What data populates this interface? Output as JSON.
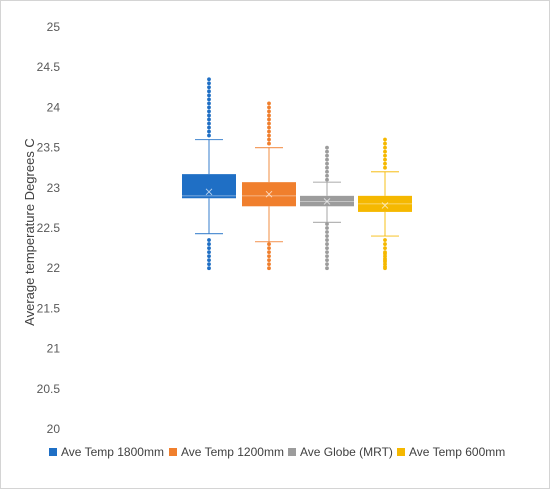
{
  "chart_data": {
    "type": "boxplot",
    "title": "",
    "xlabel": "",
    "ylabel": "Average temperature Degrees C",
    "ylim": [
      20,
      25
    ],
    "yticks": [
      "20",
      "20.5",
      "21",
      "21.5",
      "22",
      "22.5",
      "23",
      "23.5",
      "24",
      "24.5",
      "25"
    ],
    "grid": false,
    "legend_position": "bottom",
    "series": [
      {
        "name": "Ave Temp 1800mm",
        "color": "#1f6fc5",
        "whisker_low": 22.43,
        "q1": 22.87,
        "median": 22.9,
        "mean": 22.95,
        "q3": 23.17,
        "whisker_high": 23.6,
        "outliers": [
          22.0,
          22.05,
          22.1,
          22.15,
          22.2,
          22.25,
          22.3,
          22.35,
          23.65,
          23.7,
          23.75,
          23.8,
          23.85,
          23.9,
          23.95,
          24.0,
          24.05,
          24.1,
          24.15,
          24.2,
          24.25,
          24.3,
          24.35
        ]
      },
      {
        "name": "Ave Temp 1200mm",
        "color": "#f07f2d",
        "whisker_low": 22.33,
        "q1": 22.77,
        "median": 22.9,
        "mean": 22.92,
        "q3": 23.07,
        "whisker_high": 23.5,
        "outliers": [
          22.0,
          22.05,
          22.1,
          22.15,
          22.2,
          22.25,
          22.3,
          23.55,
          23.6,
          23.65,
          23.7,
          23.75,
          23.8,
          23.85,
          23.9,
          23.95,
          24.0,
          24.05
        ]
      },
      {
        "name": "Ave Globe (MRT)",
        "color": "#9c9c9c",
        "whisker_low": 22.57,
        "q1": 22.77,
        "median": 22.83,
        "mean": 22.83,
        "q3": 22.9,
        "whisker_high": 23.07,
        "outliers": [
          22.0,
          22.05,
          22.1,
          22.15,
          22.2,
          22.25,
          22.3,
          22.35,
          22.4,
          22.45,
          22.5,
          22.55,
          23.1,
          23.15,
          23.2,
          23.25,
          23.3,
          23.35,
          23.4,
          23.45,
          23.5
        ]
      },
      {
        "name": "Ave Temp 600mm",
        "color": "#f5b800",
        "whisker_low": 22.4,
        "q1": 22.7,
        "median": 22.8,
        "mean": 22.78,
        "q3": 22.9,
        "whisker_high": 23.2,
        "outliers": [
          22.0,
          22.02,
          22.05,
          22.08,
          22.1,
          22.12,
          22.15,
          22.18,
          22.2,
          22.25,
          22.3,
          22.35,
          23.25,
          23.3,
          23.35,
          23.4,
          23.45,
          23.5,
          23.55,
          23.6
        ]
      }
    ]
  }
}
